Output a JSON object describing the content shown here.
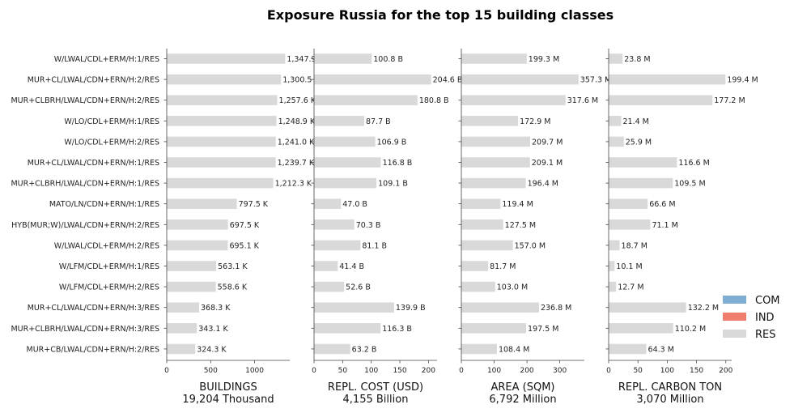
{
  "chart_data": {
    "type": "bar",
    "orientation": "horizontal",
    "title": "Exposure Russia for the top 15 building classes",
    "categories": [
      "W/LWAL/CDL+ERM/H:1/RES",
      "MUR+CL/LWAL/CDN+ERN/H:2/RES",
      "MUR+CLBRH/LWAL/CDN+ERN/H:2/RES",
      "W/LO/CDL+ERM/H:1/RES",
      "W/LO/CDL+ERM/H:2/RES",
      "MUR+CL/LWAL/CDN+ERN/H:1/RES",
      "MUR+CLBRH/LWAL/CDN+ERN/H:1/RES",
      "MATO/LN/CDN+ERN/H:1/RES",
      "HYB(MUR;W)/LWAL/CDN+ERN/H:2/RES",
      "W/LWAL/CDL+ERM/H:2/RES",
      "W/LFM/CDL+ERM/H:1/RES",
      "W/LFM/CDL+ERM/H:2/RES",
      "MUR+CL/LWAL/CDN+ERN/H:3/RES",
      "MUR+CLBRH/LWAL/CDN+ERN/H:3/RES",
      "MUR+CB/LWAL/CDN+ERN/H:2/RES"
    ],
    "legend": {
      "placement": "right",
      "items": [
        {
          "name": "COM",
          "color": "#7eaed1"
        },
        {
          "name": "IND",
          "color": "#f07e6e"
        },
        {
          "name": "RES",
          "color": "#d9d9d9"
        }
      ]
    },
    "panels": [
      {
        "xlabel": "BUILDINGS",
        "total": "19,204 Thousand",
        "unit": "thousand buildings",
        "xlim": [
          0,
          1400
        ],
        "xticks": [
          "0",
          "500",
          "1000"
        ],
        "xtick_values": [
          0,
          500,
          1000
        ],
        "values": [
          1347.9,
          1300.5,
          1257.6,
          1248.9,
          1241.0,
          1239.7,
          1212.3,
          797.5,
          697.5,
          695.1,
          563.1,
          558.6,
          368.3,
          343.1,
          324.3
        ],
        "labels": [
          "1,347.9",
          "1,300.5",
          "1,257.6 K",
          "1,248.9 K",
          "1,241.0 K",
          "1,239.7 K",
          "1,212.3 K",
          "797.5 K",
          "697.5 K",
          "695.1 K",
          "563.1 K",
          "558.6 K",
          "368.3 K",
          "343.1 K",
          "324.3 K"
        ]
      },
      {
        "xlabel": "REPL. COST (USD)",
        "total": "4,155 Billion",
        "unit": "billion USD",
        "xlim": [
          0,
          215
        ],
        "xticks": [
          "0",
          "50",
          "100",
          "150",
          "200"
        ],
        "xtick_values": [
          0,
          50,
          100,
          150,
          200
        ],
        "values": [
          100.8,
          204.6,
          180.8,
          87.7,
          106.9,
          116.8,
          109.1,
          47.0,
          70.3,
          81.1,
          41.4,
          52.6,
          139.9,
          116.3,
          63.2
        ],
        "labels": [
          "100.8 B",
          "204.6 B",
          "180.8 B",
          "87.7 B",
          "106.9 B",
          "116.8 B",
          "109.1 B",
          "47.0 B",
          "70.3 B",
          "81.1 B",
          "41.4 B",
          "52.6 B",
          "139.9 B",
          "116.3 B",
          "63.2 B"
        ]
      },
      {
        "xlabel": "AREA (SQM)",
        "total": "6,792 Million",
        "unit": "million sqm",
        "xlim": [
          0,
          375
        ],
        "xticks": [
          "0",
          "100",
          "200",
          "300"
        ],
        "xtick_values": [
          0,
          100,
          200,
          300
        ],
        "values": [
          199.3,
          357.3,
          317.6,
          172.9,
          209.7,
          209.1,
          196.4,
          119.4,
          127.5,
          157.0,
          81.7,
          103.0,
          236.8,
          197.5,
          108.4
        ],
        "labels": [
          "199.3 M",
          "357.3 M",
          "317.6 M",
          "172.9 M",
          "209.7 M",
          "209.1 M",
          "196.4 M",
          "119.4 M",
          "127.5 M",
          "157.0 M",
          "81.7 M",
          "103.0 M",
          "236.8 M",
          "197.5 M",
          "108.4 M"
        ]
      },
      {
        "xlabel": "REPL. CARBON TON",
        "total": "3,070 Million",
        "unit": "million ton",
        "xlim": [
          0,
          210
        ],
        "xticks": [
          "0",
          "50",
          "100",
          "150",
          "200"
        ],
        "xtick_values": [
          0,
          50,
          100,
          150,
          200
        ],
        "values": [
          23.8,
          199.4,
          177.2,
          21.4,
          25.9,
          116.6,
          109.5,
          66.6,
          71.1,
          18.7,
          10.1,
          12.7,
          132.2,
          110.2,
          64.3
        ],
        "labels": [
          "23.8 M",
          "199.4 M",
          "177.2 M",
          "21.4 M",
          "25.9 M",
          "116.6 M",
          "109.5 M",
          "66.6 M",
          "71.1 M",
          "18.7 M",
          "10.1 M",
          "12.7 M",
          "132.2 M",
          "110.2 M",
          "64.3 M"
        ]
      }
    ]
  }
}
